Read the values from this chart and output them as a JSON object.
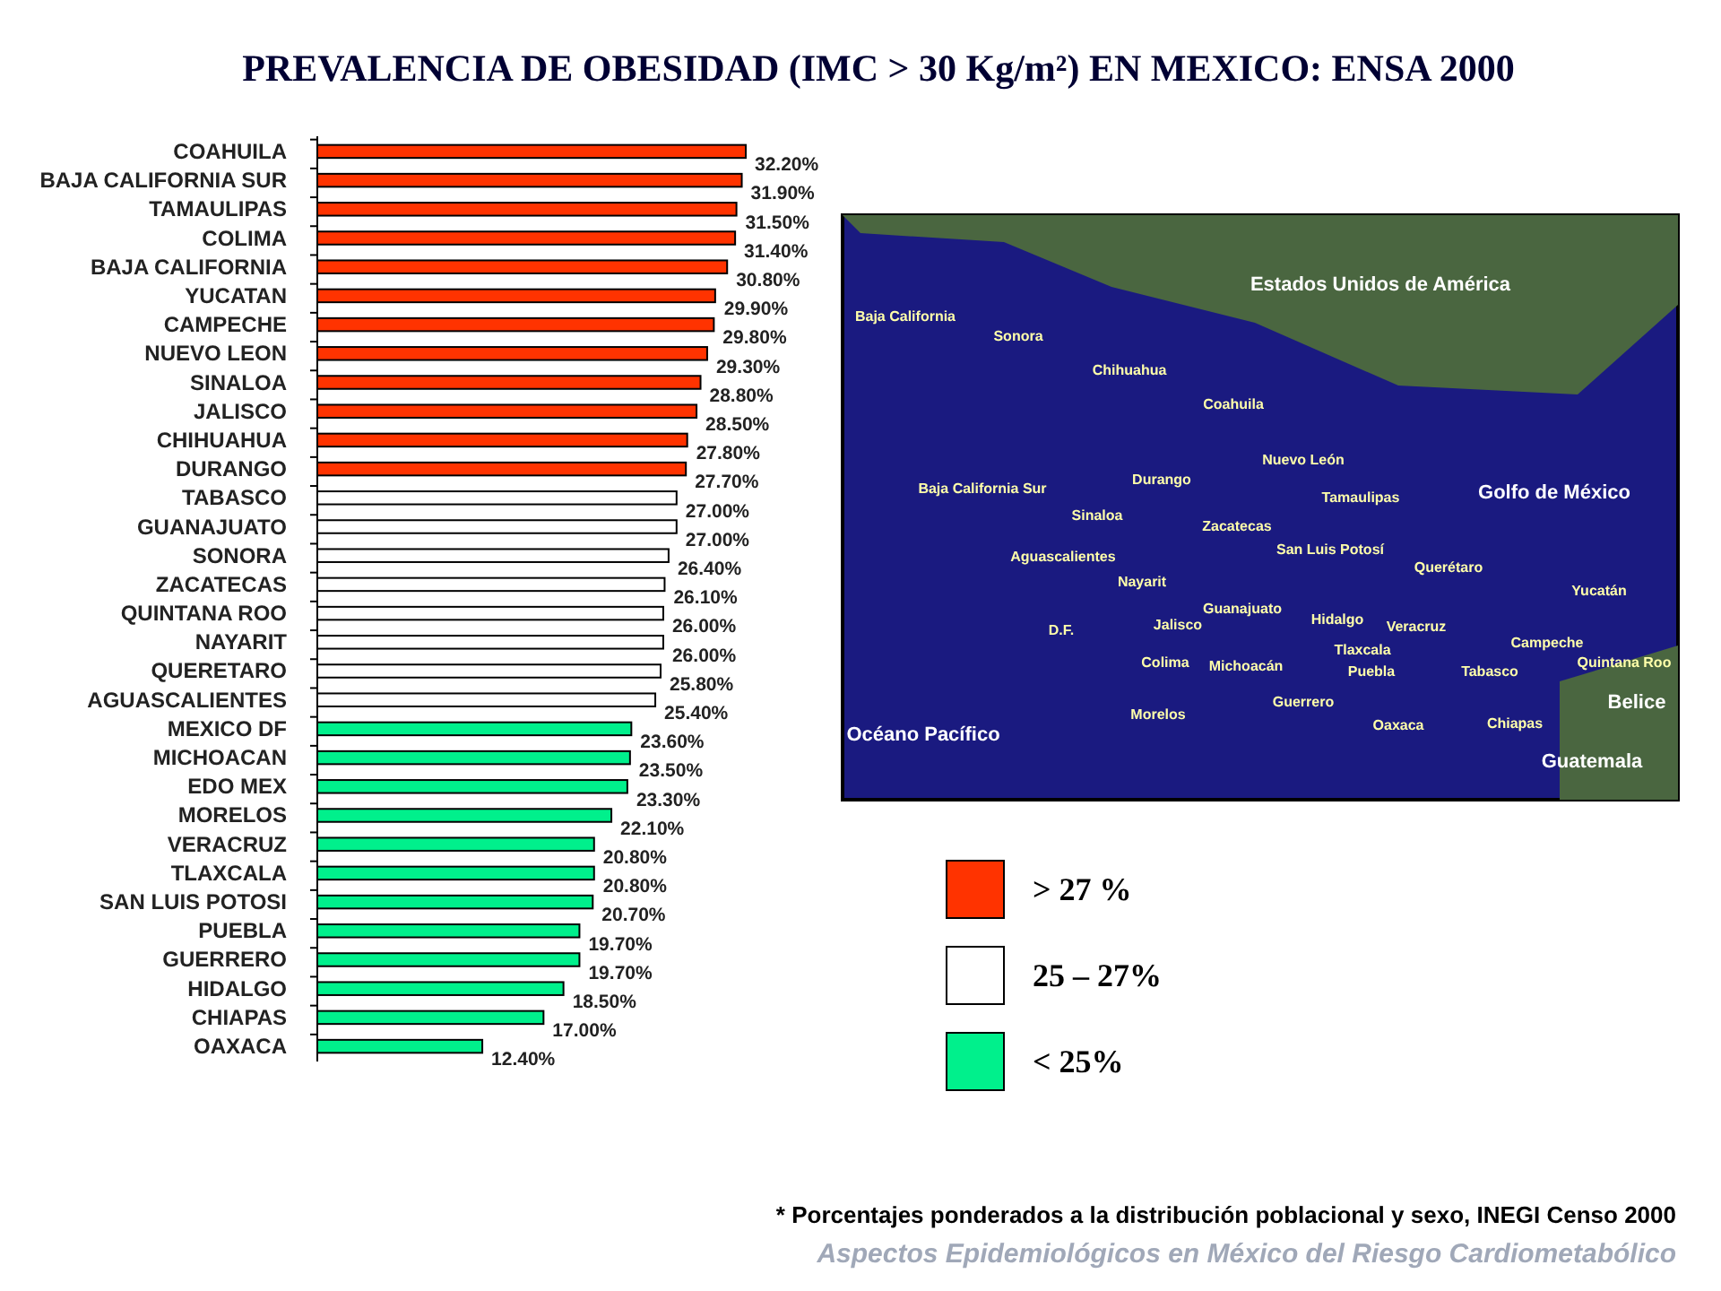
{
  "chart_data": {
    "type": "bar",
    "orientation": "horizontal",
    "title": "PREVALENCIA DE OBESIDAD (IMC > 30 Kg/m²) EN MEXICO:  ENSA 2000",
    "categories": [
      "COAHUILA",
      "BAJA CALIFORNIA  SUR",
      "TAMAULIPAS",
      "COLIMA",
      "BAJA CALIFORNIA",
      "YUCATAN",
      "CAMPECHE",
      "NUEVO LEON",
      "SINALOA",
      "JALISCO",
      "CHIHUAHUA",
      "DURANGO",
      "TABASCO",
      "GUANAJUATO",
      "SONORA",
      "ZACATECAS",
      "QUINTANA  ROO",
      "NAYARIT",
      "QUERETARO",
      "AGUASCALIENTES",
      "MEXICO DF",
      "MICHOACAN",
      "EDO MEX",
      "MORELOS",
      "VERACRUZ",
      "TLAXCALA",
      "SAN LUIS POTOSI",
      "PUEBLA",
      "GUERRERO",
      "HIDALGO",
      "CHIAPAS",
      "OAXACA"
    ],
    "xlim": [
      0,
      32.2
    ],
    "series": [
      {
        "name": "> 27 %",
        "color": "#ff3300",
        "values": [
          32.2,
          31.9,
          31.5,
          31.4,
          30.8,
          29.9,
          29.8,
          29.3,
          28.8,
          28.5,
          27.8,
          27.7,
          null,
          null,
          null,
          null,
          null,
          null,
          null,
          null,
          null,
          null,
          null,
          null,
          null,
          null,
          null,
          null,
          null,
          null,
          null,
          null
        ],
        "value_labels": [
          "32.20%",
          "31.90%",
          "31.50%",
          "31.40%",
          "30.80%",
          "29.90%",
          "29.80%",
          "29.30%",
          "28.80%",
          "28.50%",
          "27.80%",
          "27.70%",
          null,
          null,
          null,
          null,
          null,
          null,
          null,
          null,
          null,
          null,
          null,
          null,
          null,
          null,
          null,
          null,
          null,
          null,
          null,
          null
        ]
      },
      {
        "name": "25 – 27%",
        "color": "#ffffff",
        "values": [
          null,
          null,
          null,
          null,
          null,
          null,
          null,
          null,
          null,
          null,
          null,
          null,
          27.0,
          27.0,
          26.4,
          26.1,
          26.0,
          26.0,
          25.8,
          25.4,
          null,
          null,
          null,
          null,
          null,
          null,
          null,
          null,
          null,
          null,
          null,
          null
        ],
        "value_labels": [
          null,
          null,
          null,
          null,
          null,
          null,
          null,
          null,
          null,
          null,
          null,
          null,
          "27.00%",
          "27.00%",
          "26.40%",
          "26.10%",
          "26.00%",
          "26.00%",
          "25.80%",
          "25.40%",
          null,
          null,
          null,
          null,
          null,
          null,
          null,
          null,
          null,
          null,
          null,
          null
        ]
      },
      {
        "name": "< 25%",
        "color": "#00f08c",
        "values": [
          null,
          null,
          null,
          null,
          null,
          null,
          null,
          null,
          null,
          null,
          null,
          null,
          null,
          null,
          null,
          null,
          null,
          null,
          null,
          null,
          23.6,
          23.5,
          23.3,
          22.1,
          20.8,
          20.8,
          20.7,
          19.7,
          19.7,
          18.5,
          17.0,
          12.4
        ],
        "value_labels": [
          null,
          null,
          null,
          null,
          null,
          null,
          null,
          null,
          null,
          null,
          null,
          null,
          null,
          null,
          null,
          null,
          null,
          null,
          null,
          null,
          "23.60%",
          "23.50%",
          "23.30%",
          "22.10%",
          "20.80%",
          "20.80%",
          "20.70%",
          "19.70%",
          "19.70%",
          "18.50%",
          "17.00%",
          "12.40%"
        ]
      }
    ],
    "legend": "right",
    "annotations": [
      "* Porcentajes ponderados a la distribución poblacional y sexo, INEGI Censo 2000",
      "Aspectos Epidemiológicos en México del Riesgo Cardiometabólico",
      "Estados Unidos de América",
      "Golfo de México",
      "Océano Pacífico",
      "Belice",
      "Guatemala",
      "Baja California",
      "Sonora",
      "Chihuahua",
      "Coahuila",
      "Nuevo León",
      "Durango",
      "Baja California Sur",
      "Tamaulipas",
      "Sinaloa",
      "Zacatecas",
      "San Luis Potosí",
      "Aguascalientes",
      "Querétaro",
      "Nayarit",
      "Guanajuato",
      "Hidalgo",
      "Yucatán",
      "Jalisco",
      "D.F.",
      "Veracruz",
      "Campeche",
      "Quintana Roo",
      "Tlaxcala",
      "Colima",
      "Michoacán",
      "Puebla",
      "Tabasco",
      "Morelos",
      "Guerrero",
      "Oaxaca",
      "Chiapas"
    ]
  }
}
